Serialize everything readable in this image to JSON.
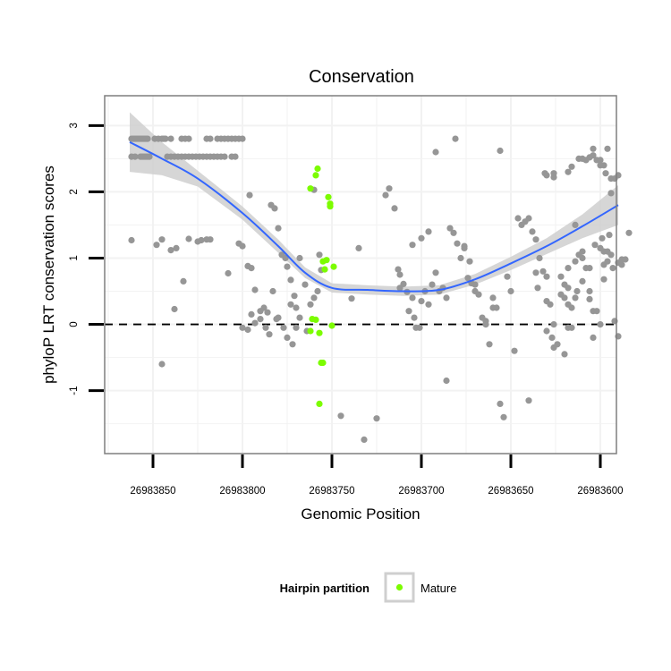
{
  "chart_data": {
    "type": "scatter",
    "title": "Conservation",
    "xlabel": "Genomic Position",
    "ylabel": "phyloP LRT conservation scores",
    "x_reversed": true,
    "xlim": [
      26983877,
      26983591
    ],
    "ylim": [
      -1.95,
      3.45
    ],
    "xticks": [
      26983850,
      26983800,
      26983750,
      26983700,
      26983650,
      26983600
    ],
    "xtick_labels": [
      "26983850",
      "26983800",
      "26983750",
      "26983700",
      "26983650",
      "26983600"
    ],
    "yticks": [
      -1,
      0,
      1,
      2,
      3
    ],
    "ytick_labels": [
      "-1",
      "0",
      "1",
      "2",
      "3"
    ],
    "grid": true,
    "reference_line": {
      "y": 0,
      "style": "dashed",
      "color": "#000000"
    },
    "colors": {
      "other": "#969696",
      "mature": "#7cfc00",
      "smooth_line": "#3366ff",
      "confidence_band": "#cfcfcf",
      "panel_border": "#7f7f7f",
      "grid": "#f2f2f2"
    },
    "legend": {
      "title": "Hairpin partition",
      "position": "bottom",
      "entries": [
        {
          "label": "Mature",
          "color": "#7cfc00"
        }
      ]
    },
    "series": [
      {
        "color": "#969696",
        "points": [
          [
            26983862,
            2.8
          ],
          [
            26983861,
            2.8
          ],
          [
            26983860,
            2.8
          ],
          [
            26983859,
            2.8
          ],
          [
            26983858,
            2.8
          ],
          [
            26983857,
            2.8
          ],
          [
            26983856,
            2.8
          ],
          [
            26983855,
            2.8
          ],
          [
            26983854,
            2.8
          ],
          [
            26983853,
            2.8
          ],
          [
            26983849,
            2.8
          ],
          [
            26983847,
            2.8
          ],
          [
            26983845,
            2.8
          ],
          [
            26983844,
            2.8
          ],
          [
            26983843,
            2.8
          ],
          [
            26983840,
            2.8
          ],
          [
            26983834,
            2.8
          ],
          [
            26983832,
            2.8
          ],
          [
            26983830,
            2.8
          ],
          [
            26983820,
            2.8
          ],
          [
            26983818,
            2.8
          ],
          [
            26983814,
            2.8
          ],
          [
            26983812,
            2.8
          ],
          [
            26983810,
            2.8
          ],
          [
            26983808,
            2.8
          ],
          [
            26983806,
            2.8
          ],
          [
            26983804,
            2.8
          ],
          [
            26983802,
            2.8
          ],
          [
            26983800,
            2.8
          ],
          [
            26983862,
            2.53
          ],
          [
            26983860,
            2.53
          ],
          [
            26983857,
            2.53
          ],
          [
            26983856,
            2.53
          ],
          [
            26983855,
            2.53
          ],
          [
            26983854,
            2.53
          ],
          [
            26983853,
            2.53
          ],
          [
            26983852,
            2.53
          ],
          [
            26983842,
            2.53
          ],
          [
            26983840,
            2.53
          ],
          [
            26983838,
            2.53
          ],
          [
            26983836,
            2.53
          ],
          [
            26983834,
            2.53
          ],
          [
            26983832,
            2.53
          ],
          [
            26983830,
            2.53
          ],
          [
            26983828,
            2.53
          ],
          [
            26983826,
            2.53
          ],
          [
            26983824,
            2.53
          ],
          [
            26983822,
            2.53
          ],
          [
            26983820,
            2.53
          ],
          [
            26983818,
            2.53
          ],
          [
            26983816,
            2.53
          ],
          [
            26983814,
            2.53
          ],
          [
            26983812,
            2.53
          ],
          [
            26983810,
            2.53
          ],
          [
            26983806,
            2.53
          ],
          [
            26983804,
            2.53
          ],
          [
            26983862,
            1.27
          ],
          [
            26983848,
            1.2
          ],
          [
            26983845,
            1.28
          ],
          [
            26983840,
            1.12
          ],
          [
            26983837,
            1.15
          ],
          [
            26983830,
            1.29
          ],
          [
            26983825,
            1.25
          ],
          [
            26983823,
            1.27
          ],
          [
            26983820,
            1.28
          ],
          [
            26983818,
            1.28
          ],
          [
            26983833,
            0.65
          ],
          [
            26983838,
            0.23
          ],
          [
            26983845,
            -0.6
          ],
          [
            26983808,
            0.77
          ],
          [
            26983802,
            1.22
          ],
          [
            26983800,
            1.18
          ],
          [
            26983797,
            0.88
          ],
          [
            26983796,
            1.95
          ],
          [
            26983795,
            0.15
          ],
          [
            26983793,
            0.02
          ],
          [
            26983790,
            0.08
          ],
          [
            26983788,
            0.25
          ],
          [
            26983786,
            0.18
          ],
          [
            26983784,
            1.8
          ],
          [
            26983782,
            1.75
          ],
          [
            26983780,
            1.45
          ],
          [
            26983780,
            0.1
          ],
          [
            26983778,
            1.05
          ],
          [
            26983776,
            1.0
          ],
          [
            26983775,
            0.87
          ],
          [
            26983773,
            0.67
          ],
          [
            26983771,
            0.43
          ],
          [
            26983770,
            0.25
          ],
          [
            26983768,
            0.1
          ],
          [
            26983760,
            2.03
          ],
          [
            26983757,
            1.05
          ],
          [
            26983756,
            0.82
          ],
          [
            26983745,
            -1.38
          ],
          [
            26983800,
            -0.05
          ],
          [
            26983797,
            -0.08
          ],
          [
            26983795,
            0.85
          ],
          [
            26983793,
            0.52
          ],
          [
            26983790,
            0.2
          ],
          [
            26983787,
            -0.05
          ],
          [
            26983785,
            -0.15
          ],
          [
            26983783,
            0.5
          ],
          [
            26983781,
            0.08
          ],
          [
            26983777,
            -0.05
          ],
          [
            26983775,
            -0.2
          ],
          [
            26983773,
            0.3
          ],
          [
            26983772,
            -0.3
          ],
          [
            26983770,
            -0.05
          ],
          [
            26983768,
            1.0
          ],
          [
            26983765,
            0.6
          ],
          [
            26983764,
            -0.1
          ],
          [
            26983762,
            0.3
          ],
          [
            26983760,
            0.4
          ],
          [
            26983758,
            0.5
          ],
          [
            26983732,
            -1.74
          ],
          [
            26983725,
            -1.42
          ],
          [
            26983720,
            1.95
          ],
          [
            26983718,
            2.05
          ],
          [
            26983715,
            1.75
          ],
          [
            26983713,
            0.83
          ],
          [
            26983712,
            0.75
          ],
          [
            26983710,
            0.61
          ],
          [
            26983708,
            0.49
          ],
          [
            26983707,
            0.2
          ],
          [
            26983705,
            0.4
          ],
          [
            26983704,
            0.1
          ],
          [
            26983703,
            -0.05
          ],
          [
            26983701,
            -0.05
          ],
          [
            26983700,
            0.35
          ],
          [
            26983698,
            0.5
          ],
          [
            26983696,
            0.3
          ],
          [
            26983694,
            0.6
          ],
          [
            26983692,
            0.78
          ],
          [
            26983690,
            0.5
          ],
          [
            26983688,
            0.55
          ],
          [
            26983686,
            0.4
          ],
          [
            26983684,
            1.45
          ],
          [
            26983682,
            1.38
          ],
          [
            26983680,
            1.22
          ],
          [
            26983678,
            1.0
          ],
          [
            26983676,
            1.15
          ],
          [
            26983674,
            0.7
          ],
          [
            26983672,
            0.62
          ],
          [
            26983670,
            0.5
          ],
          [
            26983668,
            0.45
          ],
          [
            26983666,
            0.1
          ],
          [
            26983664,
            0.0
          ],
          [
            26983662,
            -0.3
          ],
          [
            26983660,
            0.4
          ],
          [
            26983658,
            0.25
          ],
          [
            26983656,
            -1.2
          ],
          [
            26983654,
            -1.4
          ],
          [
            26983652,
            0.72
          ],
          [
            26983650,
            0.5
          ],
          [
            26983648,
            -0.4
          ],
          [
            26983646,
            1.6
          ],
          [
            26983644,
            1.5
          ],
          [
            26983642,
            1.55
          ],
          [
            26983640,
            1.6
          ],
          [
            26983638,
            1.4
          ],
          [
            26983636,
            1.28
          ],
          [
            26983634,
            1.0
          ],
          [
            26983632,
            0.8
          ],
          [
            26983630,
            0.72
          ],
          [
            26983628,
            0.3
          ],
          [
            26983626,
            0.0
          ],
          [
            26983624,
            -0.3
          ],
          [
            26983622,
            0.45
          ],
          [
            26983620,
            0.6
          ],
          [
            26983618,
            0.3
          ],
          [
            26983616,
            0.25
          ],
          [
            26983614,
            0.4
          ],
          [
            26983612,
            1.05
          ],
          [
            26983610,
            1.0
          ],
          [
            26983608,
            0.85
          ],
          [
            26983606,
            0.5
          ],
          [
            26983604,
            0.2
          ],
          [
            26983602,
            0.2
          ],
          [
            26983600,
            0.0
          ],
          [
            26983739,
            0.39
          ],
          [
            26983735,
            1.15
          ],
          [
            26983712,
            0.55
          ],
          [
            26983705,
            1.2
          ],
          [
            26983700,
            1.3
          ],
          [
            26983696,
            1.4
          ],
          [
            26983692,
            2.6
          ],
          [
            26983686,
            -0.85
          ],
          [
            26983681,
            2.8
          ],
          [
            26983676,
            1.18
          ],
          [
            26983673,
            0.95
          ],
          [
            26983670,
            0.6
          ],
          [
            26983664,
            0.05
          ],
          [
            26983660,
            0.25
          ],
          [
            26983656,
            2.62
          ],
          [
            26983640,
            -1.15
          ],
          [
            26983635,
            0.55
          ],
          [
            26983630,
            2.25
          ],
          [
            26983626,
            2.22
          ],
          [
            26983620,
            -0.45
          ],
          [
            26983618,
            0.55
          ],
          [
            26983614,
            1.5
          ],
          [
            26983636,
            0.78
          ],
          [
            26983630,
            0.35
          ],
          [
            26983627,
            -0.2
          ],
          [
            26983622,
            0.72
          ],
          [
            26983618,
            0.85
          ],
          [
            26983614,
            0.95
          ],
          [
            26983610,
            1.1
          ],
          [
            26983606,
            0.38
          ],
          [
            26983604,
            -0.2
          ],
          [
            26983598,
            0.9
          ],
          [
            26983596,
            0.95
          ],
          [
            26983594,
            1.05
          ],
          [
            26983630,
            -0.1
          ],
          [
            26983626,
            -0.35
          ],
          [
            26983620,
            0.4
          ],
          [
            26983618,
            -0.05
          ],
          [
            26983616,
            -0.05
          ],
          [
            26983613,
            0.5
          ],
          [
            26983610,
            0.65
          ],
          [
            26983606,
            0.85
          ],
          [
            26983603,
            1.2
          ],
          [
            26983599,
            1.3
          ],
          [
            26983595,
            1.35
          ],
          [
            26983631,
            2.28
          ],
          [
            26983626,
            2.28
          ],
          [
            26983618,
            2.3
          ],
          [
            26983616,
            2.38
          ],
          [
            26983612,
            2.5
          ],
          [
            26983610,
            2.5
          ],
          [
            26983608,
            2.48
          ],
          [
            26983606,
            2.52
          ],
          [
            26983604,
            2.65
          ],
          [
            26983602,
            2.48
          ],
          [
            26983600,
            2.4
          ],
          [
            26983598,
            2.4
          ],
          [
            26983596,
            2.65
          ],
          [
            26983594,
            2.2
          ],
          [
            26983592,
            2.2
          ],
          [
            26983590,
            2.25
          ],
          [
            26983604,
            2.55
          ],
          [
            26983600,
            2.48
          ],
          [
            26983597,
            2.28
          ],
          [
            26983594,
            1.98
          ],
          [
            26983600,
            1.15
          ],
          [
            26983598,
            1.1
          ],
          [
            26983596,
            1.1
          ],
          [
            26983593,
            0.85
          ],
          [
            26983590,
            0.93
          ],
          [
            26983588,
            0.98
          ],
          [
            26983586,
            0.98
          ],
          [
            26983584,
            1.38
          ],
          [
            26983592,
            0.05
          ],
          [
            26983590,
            -0.18
          ],
          [
            26983598,
            0.68
          ],
          [
            26983588,
            0.9
          ]
        ]
      },
      {
        "name": "Mature",
        "color": "#7cfc00",
        "points": [
          [
            26983758,
            2.35
          ],
          [
            26983759,
            2.25
          ],
          [
            26983762,
            2.05
          ],
          [
            26983752,
            1.92
          ],
          [
            26983751,
            1.78
          ],
          [
            26983751,
            1.82
          ],
          [
            26983755,
            0.95
          ],
          [
            26983753,
            0.97
          ],
          [
            26983754,
            0.83
          ],
          [
            26983749,
            0.87
          ],
          [
            26983759,
            0.07
          ],
          [
            26983761,
            0.08
          ],
          [
            26983757,
            -0.13
          ],
          [
            26983762,
            -0.1
          ],
          [
            26983750,
            -0.02
          ],
          [
            26983755,
            -0.58
          ],
          [
            26983756,
            -0.58
          ],
          [
            26983757,
            -1.2
          ]
        ]
      }
    ],
    "smooth": {
      "x": [
        26983863,
        26983845,
        26983825,
        26983800,
        26983780,
        26983765,
        26983750,
        26983730,
        26983710,
        26983690,
        26983670,
        26983650,
        26983630,
        26983610,
        26983590
      ],
      "y": [
        2.75,
        2.5,
        2.2,
        1.68,
        1.18,
        0.78,
        0.55,
        0.52,
        0.5,
        0.52,
        0.68,
        0.92,
        1.18,
        1.48,
        1.8
      ],
      "band_halfwidth": [
        0.45,
        0.25,
        0.12,
        0.1,
        0.1,
        0.08,
        0.07,
        0.07,
        0.07,
        0.07,
        0.08,
        0.1,
        0.12,
        0.18,
        0.3
      ]
    }
  }
}
